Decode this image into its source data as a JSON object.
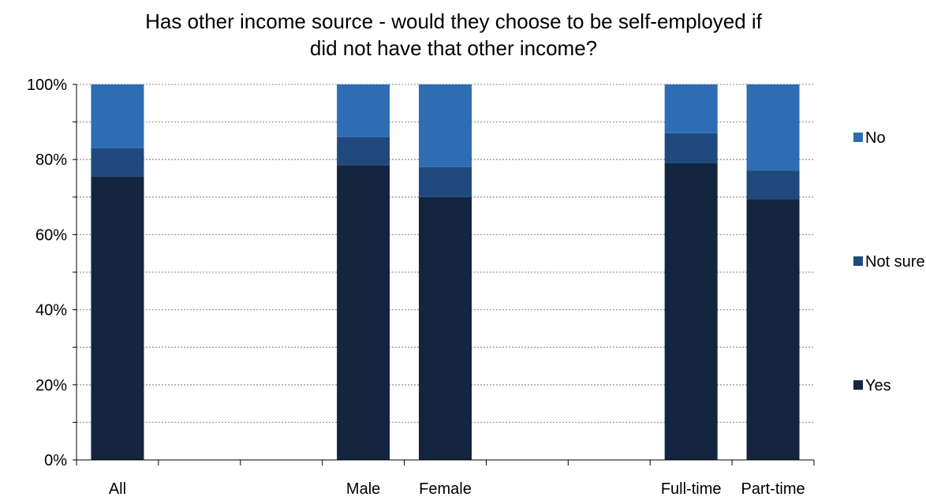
{
  "chart_data": {
    "type": "bar",
    "stacked": true,
    "title_lines": [
      "Has other income source - would they choose to be self-employed if",
      "did not have that other income?"
    ],
    "xlabel": "",
    "ylabel": "",
    "ylim": [
      0,
      100
    ],
    "y_ticks": [
      "0%",
      "20%",
      "40%",
      "60%",
      "80%",
      "100%"
    ],
    "grid": true,
    "legend_position": "right",
    "categories": [
      "All",
      "",
      "",
      "Male",
      "Female",
      "",
      "",
      "Full-time",
      "Part-time"
    ],
    "series": [
      {
        "name": "Yes",
        "color": "#13253F",
        "values": [
          75.5,
          null,
          null,
          78.5,
          70.0,
          null,
          null,
          79.0,
          69.5
        ]
      },
      {
        "name": "Not sure",
        "color": "#1F497D",
        "values": [
          7.5,
          null,
          null,
          7.5,
          8.0,
          null,
          null,
          8.0,
          7.5
        ]
      },
      {
        "name": "No",
        "color": "#2E6DB4",
        "values": [
          17.0,
          null,
          null,
          14.0,
          22.0,
          null,
          null,
          13.0,
          23.0
        ]
      }
    ]
  }
}
